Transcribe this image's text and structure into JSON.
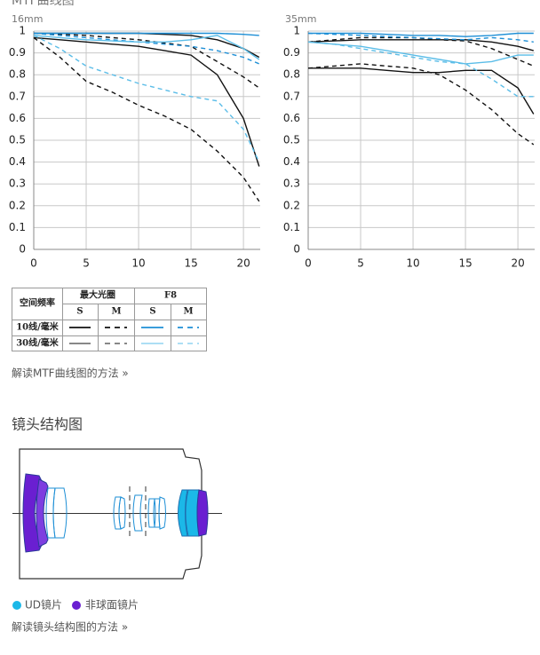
{
  "heading": "MTF曲线图",
  "chart_data": [
    {
      "type": "line",
      "title": "16mm",
      "x": [
        0,
        2.5,
        5,
        7.5,
        10,
        12.5,
        15,
        17.5,
        20,
        21.5
      ],
      "xlim": [
        0,
        21.6
      ],
      "xticks": [
        0,
        5,
        10,
        15,
        20
      ],
      "ylim": [
        0,
        1
      ],
      "yticks": [
        0,
        0.1,
        0.2,
        0.3,
        0.4,
        0.5,
        0.6,
        0.7,
        0.8,
        0.9,
        1
      ],
      "grid": true,
      "series": [
        {
          "color": "#111111",
          "dash": false,
          "values": [
            0.99,
            0.99,
            0.99,
            0.99,
            0.99,
            0.985,
            0.98,
            0.96,
            0.92,
            0.88
          ]
        },
        {
          "color": "#111111",
          "dash": true,
          "values": [
            0.99,
            0.985,
            0.98,
            0.97,
            0.96,
            0.945,
            0.93,
            0.86,
            0.79,
            0.74
          ]
        },
        {
          "color": "#111111",
          "dash": false,
          "values": [
            0.97,
            0.96,
            0.95,
            0.94,
            0.93,
            0.91,
            0.89,
            0.8,
            0.6,
            0.38
          ]
        },
        {
          "color": "#111111",
          "dash": true,
          "values": [
            0.97,
            0.88,
            0.77,
            0.72,
            0.66,
            0.61,
            0.55,
            0.45,
            0.33,
            0.22
          ]
        },
        {
          "color": "#1e8fd6",
          "dash": false,
          "values": [
            0.99,
            0.99,
            0.99,
            0.99,
            0.99,
            0.99,
            0.99,
            0.99,
            0.985,
            0.98
          ]
        },
        {
          "color": "#1e8fd6",
          "dash": true,
          "values": [
            0.99,
            0.98,
            0.97,
            0.96,
            0.95,
            0.94,
            0.93,
            0.91,
            0.88,
            0.85
          ]
        },
        {
          "color": "#5bbde8",
          "dash": false,
          "values": [
            0.98,
            0.97,
            0.96,
            0.955,
            0.95,
            0.95,
            0.96,
            0.98,
            0.92,
            0.87
          ]
        },
        {
          "color": "#5bbde8",
          "dash": true,
          "values": [
            0.98,
            0.92,
            0.84,
            0.8,
            0.76,
            0.73,
            0.7,
            0.68,
            0.55,
            0.4
          ]
        }
      ]
    },
    {
      "type": "line",
      "title": "35mm",
      "x": [
        0,
        2.5,
        5,
        7.5,
        10,
        12.5,
        15,
        17.5,
        20,
        21.5
      ],
      "xlim": [
        0,
        21.6
      ],
      "xticks": [
        0,
        5,
        10,
        15,
        20
      ],
      "ylim": [
        0,
        1
      ],
      "yticks": [
        0,
        0.1,
        0.2,
        0.3,
        0.4,
        0.5,
        0.6,
        0.7,
        0.8,
        0.9,
        1
      ],
      "grid": true,
      "series": [
        {
          "color": "#111111",
          "dash": false,
          "values": [
            0.95,
            0.955,
            0.96,
            0.96,
            0.96,
            0.96,
            0.96,
            0.95,
            0.93,
            0.91
          ]
        },
        {
          "color": "#111111",
          "dash": true,
          "values": [
            0.95,
            0.96,
            0.97,
            0.97,
            0.97,
            0.96,
            0.955,
            0.92,
            0.87,
            0.84
          ]
        },
        {
          "color": "#111111",
          "dash": false,
          "values": [
            0.83,
            0.83,
            0.83,
            0.82,
            0.81,
            0.81,
            0.82,
            0.82,
            0.74,
            0.62
          ]
        },
        {
          "color": "#111111",
          "dash": true,
          "values": [
            0.83,
            0.84,
            0.85,
            0.84,
            0.83,
            0.8,
            0.73,
            0.64,
            0.53,
            0.48
          ]
        },
        {
          "color": "#1e8fd6",
          "dash": false,
          "values": [
            0.99,
            0.99,
            0.99,
            0.985,
            0.98,
            0.98,
            0.975,
            0.98,
            0.99,
            0.99
          ]
        },
        {
          "color": "#1e8fd6",
          "dash": true,
          "values": [
            0.99,
            0.985,
            0.98,
            0.975,
            0.97,
            0.965,
            0.96,
            0.97,
            0.96,
            0.95
          ]
        },
        {
          "color": "#5bbde8",
          "dash": false,
          "values": [
            0.95,
            0.94,
            0.93,
            0.91,
            0.89,
            0.87,
            0.85,
            0.86,
            0.89,
            0.89
          ]
        },
        {
          "color": "#5bbde8",
          "dash": true,
          "values": [
            0.95,
            0.94,
            0.92,
            0.9,
            0.88,
            0.86,
            0.85,
            0.78,
            0.7,
            0.7
          ]
        }
      ]
    }
  ],
  "legend_table": {
    "freq_header": "空间频率",
    "groups": [
      "最大光圈",
      "F8"
    ],
    "subheaders": [
      "S",
      "M",
      "S",
      "M"
    ],
    "rows": [
      "10线/毫米",
      "30线/毫米"
    ]
  },
  "mtf_link": "解读MTF曲线图的方法 »",
  "lens_section": {
    "title": "镜头结构图",
    "legend": [
      "UD镜片",
      "非球面镜片"
    ],
    "link": "解读镜头结构图的方法 »"
  }
}
